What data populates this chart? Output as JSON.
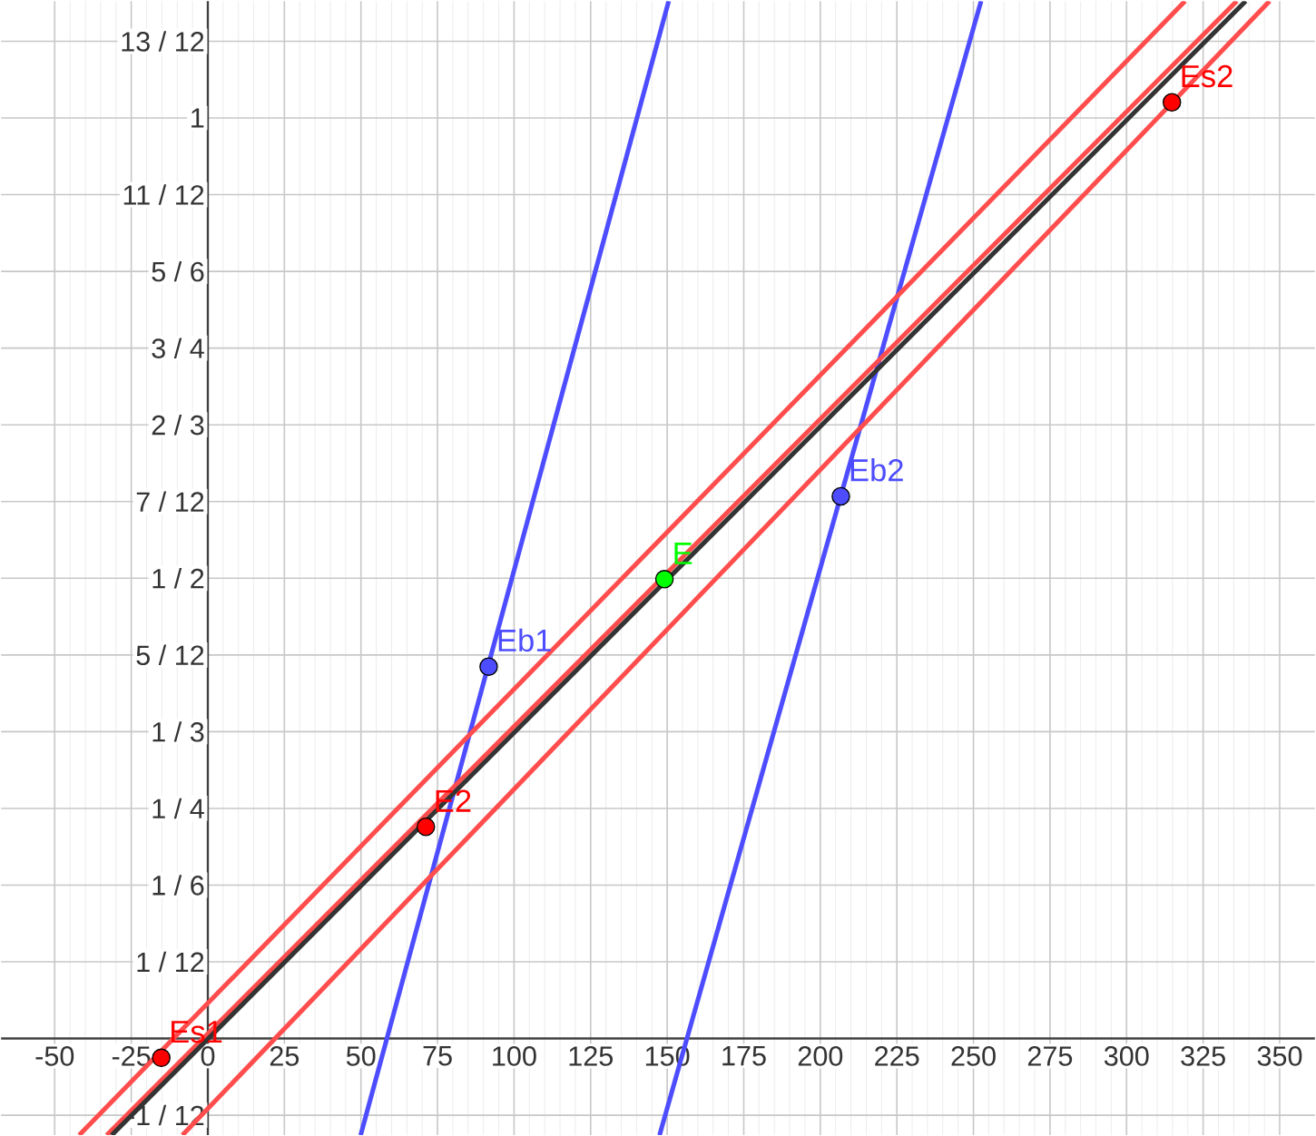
{
  "chart_data": {
    "type": "line",
    "xlim": [
      -67.5,
      361.5
    ],
    "ylim": [
      -0.105,
      1.127
    ],
    "xticks": [
      -50,
      -25,
      0,
      25,
      50,
      75,
      100,
      125,
      150,
      175,
      200,
      225,
      250,
      275,
      300,
      325,
      350
    ],
    "yticks": [
      {
        "value": -0.083333,
        "label": "-1 / 12"
      },
      {
        "value": 0.083333,
        "label": "1 / 12"
      },
      {
        "value": 0.166667,
        "label": "1 / 6"
      },
      {
        "value": 0.25,
        "label": "1 / 4"
      },
      {
        "value": 0.333333,
        "label": "1 / 3"
      },
      {
        "value": 0.416667,
        "label": "5 / 12"
      },
      {
        "value": 0.5,
        "label": "1 / 2"
      },
      {
        "value": 0.583333,
        "label": "7 / 12"
      },
      {
        "value": 0.666667,
        "label": "2 / 3"
      },
      {
        "value": 0.75,
        "label": "3 / 4"
      },
      {
        "value": 0.833333,
        "label": "5 / 6"
      },
      {
        "value": 0.916667,
        "label": "11 / 12"
      },
      1,
      {
        "value": 1.083333,
        "label": "13 / 12"
      }
    ],
    "grid": true,
    "series": [
      {
        "color": "#4d4dff",
        "x": [
          49.9,
          150.5
        ],
        "values": [
          -0.105,
          1.127
        ]
      },
      {
        "color": "#4d4dff",
        "x": [
          147.5,
          252.5
        ],
        "values": [
          -0.105,
          1.127
        ]
      },
      {
        "color": "#ff4d4d",
        "x": [
          -42,
          319.1
        ],
        "values": [
          -0.105,
          1.127
        ]
      },
      {
        "color": "#ff4d4d",
        "x": [
          -8.3,
          346.7
        ],
        "values": [
          -0.105,
          1.127
        ]
      },
      {
        "color": "#ff4d4d",
        "x": [
          -33,
          336
        ],
        "values": [
          -0.105,
          1.127
        ]
      },
      {
        "color": "#333333",
        "x": [
          -31.4,
          338.9
        ],
        "values": [
          -0.105,
          1.127
        ]
      },
      {
        "type": "scatter",
        "name": "Es1",
        "color": "#ff0000",
        "marker": "circle",
        "x": [
          -15.2
        ],
        "values": [
          -0.021
        ]
      },
      {
        "type": "scatter",
        "name": "E2",
        "color": "#ff0000",
        "marker": "circle",
        "x": [
          71.2
        ],
        "values": [
          0.23
        ]
      },
      {
        "type": "scatter",
        "name": "E",
        "color": "#00ff00",
        "marker": "circle",
        "x": [
          149.1
        ],
        "values": [
          0.499
        ]
      },
      {
        "type": "scatter",
        "name": "Eb1",
        "color": "#4d4dff",
        "marker": "circle",
        "x": [
          91.7
        ],
        "values": [
          0.404
        ]
      },
      {
        "type": "scatter",
        "name": "Eb2",
        "color": "#4d4dff",
        "marker": "circle",
        "x": [
          206.7
        ],
        "values": [
          0.589
        ]
      },
      {
        "type": "scatter",
        "name": "Es2",
        "color": "#ff0000",
        "marker": "circle",
        "x": [
          314.8
        ],
        "values": [
          1.017
        ]
      }
    ]
  }
}
